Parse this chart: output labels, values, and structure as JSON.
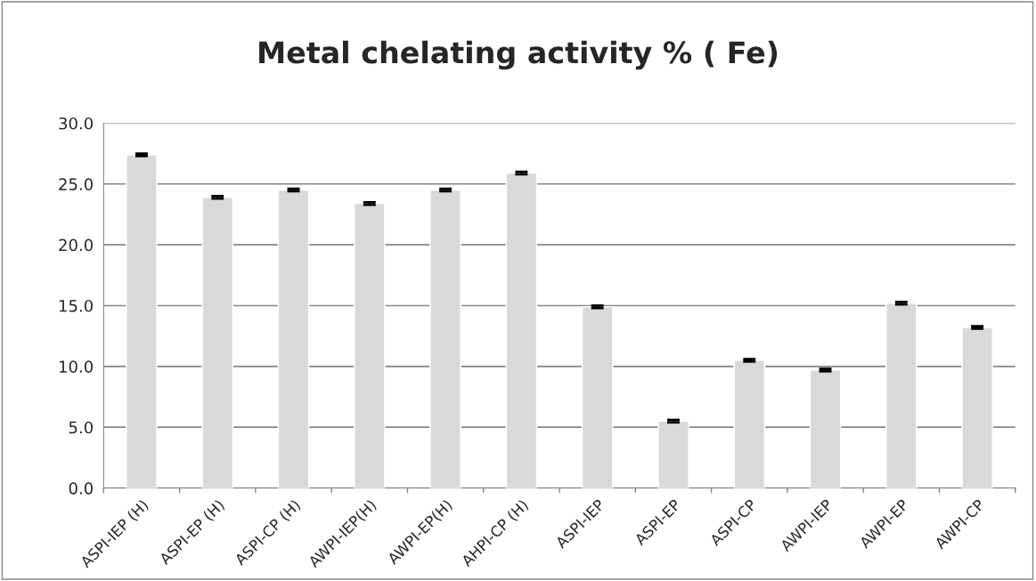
{
  "chart_data": {
    "type": "bar",
    "title": "Metal chelating activity % ( Fe)",
    "categories": [
      "ASPI-IEP (H)",
      "ASPI-EP (H)",
      "ASPI-CP (H)",
      "AWPI-IEP(H)",
      "AWPI-EP(H)",
      "AHPI-CP (H)",
      "ASPI-IEP",
      "ASPI-EP",
      "ASPI-CP",
      "AWPI-IEP",
      "AWPI-EP",
      "AWPI-CP"
    ],
    "values": [
      27.4,
      23.9,
      24.5,
      23.4,
      24.5,
      25.9,
      14.9,
      5.5,
      10.5,
      9.7,
      15.2,
      13.2
    ],
    "errors": [
      0.1,
      0.1,
      0.1,
      0.1,
      0.1,
      0.1,
      0.1,
      0.1,
      0.1,
      0.1,
      0.1,
      0.1
    ],
    "color": "#d9d9d9",
    "ylim": [
      0,
      30
    ],
    "yticks": [
      {
        "value": 0,
        "label": "0.0"
      },
      {
        "value": 5,
        "label": "5.0"
      },
      {
        "value": 10,
        "label": "10.0"
      },
      {
        "value": 15,
        "label": "15.0"
      },
      {
        "value": 20,
        "label": "20.0"
      },
      {
        "value": 25,
        "label": "25.0"
      },
      {
        "value": 30,
        "label": "30.0"
      }
    ],
    "grid": "y",
    "legend": false
  }
}
